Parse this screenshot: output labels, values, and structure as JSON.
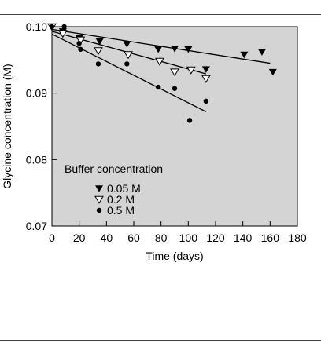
{
  "chart_data": {
    "type": "scatter",
    "xlabel": "Time (days)",
    "ylabel": "Glycine concentration (M)",
    "xlim": [
      0,
      180
    ],
    "ylim": [
      0.07,
      0.1
    ],
    "xticks": [
      "0",
      "20",
      "40",
      "60",
      "80",
      "100",
      "120",
      "140",
      "160",
      "180"
    ],
    "yticks": [
      "0.07",
      "0.08",
      "0.09",
      "0.10"
    ],
    "legend_title": "Buffer concentration",
    "legend_position": "lower-left",
    "background": "#d4d4d4",
    "series": [
      {
        "name": "0.05 M",
        "marker": "filled-down-triangle",
        "x": [
          0,
          8,
          20,
          35,
          55,
          78,
          90,
          100,
          113,
          141,
          154,
          162
        ],
        "y": [
          0.1,
          0.0993,
          0.0983,
          0.0978,
          0.0974,
          0.0966,
          0.0967,
          0.0966,
          0.0936,
          0.0958,
          0.0962,
          0.0932
        ],
        "fit": [
          [
            0,
            0.0996
          ],
          [
            160,
            0.0945
          ]
        ]
      },
      {
        "name": "0.2 M",
        "marker": "open-down-triangle",
        "x": [
          0,
          8,
          21,
          34,
          56,
          79,
          90,
          102,
          113
        ],
        "y": [
          0.1,
          0.099,
          0.098,
          0.0964,
          0.0958,
          0.0948,
          0.0932,
          0.0935,
          0.0922
        ],
        "fit": [
          [
            0,
            0.0993
          ],
          [
            113,
            0.0929
          ]
        ]
      },
      {
        "name": "0.5 M",
        "marker": "filled-circle",
        "x": [
          0,
          9,
          20,
          21,
          34,
          55,
          78,
          90,
          101,
          113
        ],
        "y": [
          0.1,
          0.1,
          0.0975,
          0.0966,
          0.0944,
          0.0944,
          0.0909,
          0.0907,
          0.0859,
          0.0888
        ],
        "fit": [
          [
            0,
            0.0989
          ],
          [
            113,
            0.0872
          ]
        ]
      }
    ]
  }
}
